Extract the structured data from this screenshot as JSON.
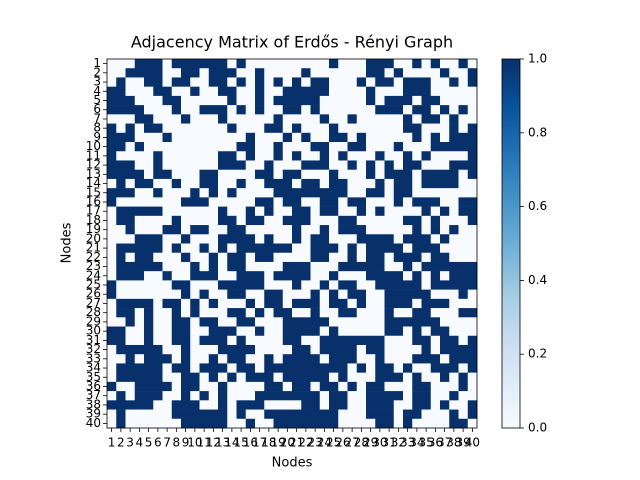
{
  "chart_data": {
    "type": "heatmap",
    "title": "Adjacency Matrix of Erdős - Rényi Graph",
    "x_label": "Nodes",
    "y_label": "Nodes",
    "xticks": [
      1,
      2,
      3,
      4,
      5,
      6,
      7,
      8,
      9,
      10,
      11,
      12,
      13,
      14,
      15,
      16,
      17,
      18,
      19,
      20,
      21,
      22,
      23,
      24,
      25,
      26,
      27,
      28,
      29,
      30,
      31,
      32,
      33,
      34,
      35,
      36,
      37,
      38,
      39,
      40
    ],
    "yticks": [
      1,
      2,
      3,
      4,
      5,
      6,
      7,
      8,
      9,
      10,
      11,
      12,
      13,
      14,
      15,
      16,
      17,
      18,
      19,
      20,
      21,
      22,
      23,
      24,
      25,
      26,
      27,
      28,
      29,
      30,
      31,
      32,
      33,
      34,
      35,
      36,
      37,
      38,
      39,
      40
    ],
    "colormap": [
      "#f7fbff",
      "#deebf7",
      "#c6dbef",
      "#9ecae1",
      "#6baed6",
      "#4292c6",
      "#2171b5",
      "#08519c",
      "#08306b"
    ],
    "clim": [
      0,
      1
    ],
    "colorbar_ticks": [
      {
        "value": 0,
        "label": "0.0"
      },
      {
        "value": 0.2,
        "label": "0.2"
      },
      {
        "value": 0.4,
        "label": "0.4"
      },
      {
        "value": 0.6,
        "label": "0.6"
      },
      {
        "value": 0.8,
        "label": "0.8"
      },
      {
        "value": 1,
        "label": "1.0"
      }
    ],
    "matrix": [
      [
        0,
        0,
        0,
        1,
        1,
        1,
        0,
        1,
        1,
        1,
        1,
        1,
        1,
        0,
        1,
        0,
        0,
        0,
        0,
        0,
        0,
        0,
        0,
        0,
        1,
        0,
        0,
        0,
        1,
        1,
        1,
        0,
        0,
        1,
        0,
        1,
        0,
        0,
        1,
        0
      ],
      [
        0,
        0,
        1,
        1,
        1,
        1,
        0,
        0,
        1,
        1,
        0,
        1,
        1,
        1,
        0,
        0,
        1,
        0,
        0,
        0,
        0,
        1,
        0,
        0,
        0,
        0,
        0,
        0,
        1,
        1,
        0,
        1,
        0,
        0,
        0,
        0,
        1,
        0,
        0,
        1
      ],
      [
        0,
        1,
        0,
        0,
        1,
        1,
        0,
        1,
        1,
        0,
        0,
        1,
        1,
        0,
        1,
        0,
        1,
        0,
        1,
        0,
        1,
        0,
        1,
        1,
        0,
        0,
        0,
        1,
        0,
        1,
        1,
        0,
        1,
        1,
        1,
        0,
        0,
        1,
        0,
        1
      ],
      [
        1,
        1,
        0,
        0,
        0,
        1,
        1,
        0,
        0,
        1,
        0,
        0,
        1,
        1,
        0,
        0,
        1,
        0,
        0,
        1,
        1,
        1,
        1,
        1,
        0,
        0,
        0,
        0,
        1,
        0,
        0,
        0,
        1,
        1,
        1,
        0,
        0,
        0,
        0,
        0
      ],
      [
        1,
        1,
        1,
        0,
        0,
        0,
        1,
        1,
        0,
        0,
        0,
        0,
        0,
        1,
        0,
        0,
        1,
        0,
        1,
        1,
        1,
        1,
        1,
        0,
        0,
        0,
        0,
        0,
        1,
        0,
        1,
        1,
        1,
        0,
        1,
        1,
        0,
        0,
        0,
        0
      ],
      [
        1,
        1,
        1,
        1,
        0,
        0,
        0,
        1,
        0,
        0,
        1,
        1,
        1,
        0,
        1,
        0,
        1,
        0,
        0,
        1,
        1,
        0,
        1,
        0,
        0,
        0,
        0,
        0,
        0,
        1,
        1,
        1,
        0,
        1,
        1,
        0,
        1,
        0,
        1,
        0
      ],
      [
        0,
        0,
        0,
        1,
        1,
        0,
        0,
        0,
        1,
        0,
        0,
        0,
        1,
        0,
        0,
        0,
        0,
        0,
        1,
        0,
        0,
        0,
        0,
        1,
        0,
        0,
        1,
        0,
        0,
        0,
        0,
        0,
        1,
        0,
        1,
        1,
        0,
        1,
        0,
        0
      ],
      [
        1,
        0,
        1,
        0,
        1,
        1,
        0,
        0,
        0,
        0,
        0,
        0,
        0,
        1,
        0,
        0,
        0,
        1,
        1,
        0,
        1,
        0,
        0,
        0,
        1,
        0,
        0,
        0,
        0,
        0,
        0,
        0,
        1,
        1,
        0,
        0,
        0,
        1,
        0,
        1
      ],
      [
        1,
        1,
        1,
        0,
        0,
        0,
        1,
        0,
        0,
        0,
        0,
        0,
        0,
        0,
        0,
        1,
        0,
        0,
        0,
        1,
        0,
        1,
        0,
        0,
        1,
        1,
        0,
        1,
        0,
        0,
        0,
        0,
        0,
        1,
        0,
        1,
        0,
        1,
        1,
        1
      ],
      [
        1,
        1,
        0,
        1,
        0,
        0,
        0,
        0,
        0,
        0,
        0,
        0,
        0,
        0,
        1,
        1,
        0,
        0,
        1,
        0,
        0,
        0,
        1,
        1,
        0,
        0,
        1,
        1,
        0,
        0,
        0,
        1,
        0,
        0,
        0,
        1,
        1,
        1,
        1,
        1
      ],
      [
        1,
        0,
        0,
        0,
        0,
        1,
        0,
        0,
        0,
        0,
        0,
        0,
        1,
        1,
        0,
        1,
        0,
        0,
        1,
        0,
        1,
        0,
        0,
        1,
        0,
        1,
        0,
        0,
        0,
        1,
        0,
        0,
        1,
        0,
        1,
        0,
        0,
        0,
        0,
        1
      ],
      [
        1,
        1,
        1,
        0,
        0,
        1,
        0,
        0,
        0,
        0,
        0,
        0,
        1,
        1,
        1,
        0,
        0,
        1,
        0,
        0,
        0,
        1,
        1,
        1,
        0,
        0,
        1,
        0,
        1,
        0,
        1,
        0,
        1,
        1,
        0,
        0,
        0,
        1,
        1,
        1
      ],
      [
        1,
        1,
        1,
        1,
        0,
        1,
        1,
        0,
        0,
        0,
        1,
        1,
        0,
        0,
        0,
        0,
        1,
        1,
        0,
        1,
        1,
        0,
        0,
        0,
        1,
        0,
        0,
        0,
        1,
        0,
        1,
        1,
        1,
        0,
        1,
        1,
        1,
        1,
        0,
        1
      ],
      [
        0,
        1,
        0,
        1,
        1,
        0,
        0,
        1,
        0,
        0,
        1,
        1,
        0,
        0,
        1,
        0,
        0,
        1,
        1,
        1,
        0,
        1,
        1,
        0,
        1,
        1,
        0,
        0,
        0,
        1,
        0,
        1,
        1,
        0,
        1,
        1,
        1,
        1,
        0,
        0
      ],
      [
        1,
        1,
        1,
        0,
        0,
        1,
        0,
        0,
        0,
        1,
        0,
        1,
        0,
        1,
        0,
        0,
        0,
        0,
        1,
        1,
        1,
        1,
        1,
        1,
        1,
        1,
        0,
        0,
        1,
        1,
        0,
        1,
        1,
        0,
        0,
        0,
        0,
        0,
        0,
        0
      ],
      [
        1,
        0,
        0,
        0,
        0,
        0,
        0,
        0,
        1,
        1,
        1,
        0,
        0,
        0,
        0,
        0,
        1,
        1,
        0,
        1,
        1,
        0,
        0,
        1,
        1,
        0,
        1,
        1,
        0,
        0,
        0,
        1,
        0,
        1,
        1,
        1,
        0,
        0,
        1,
        1
      ],
      [
        0,
        1,
        1,
        1,
        1,
        1,
        0,
        0,
        0,
        0,
        0,
        0,
        1,
        0,
        0,
        1,
        0,
        1,
        0,
        0,
        1,
        1,
        0,
        1,
        1,
        0,
        0,
        1,
        0,
        1,
        0,
        0,
        0,
        0,
        1,
        0,
        1,
        0,
        1,
        1
      ],
      [
        0,
        1,
        1,
        0,
        0,
        0,
        0,
        1,
        0,
        0,
        0,
        0,
        1,
        1,
        0,
        1,
        1,
        0,
        0,
        1,
        1,
        1,
        0,
        0,
        0,
        1,
        1,
        0,
        0,
        0,
        0,
        0,
        1,
        1,
        0,
        1,
        0,
        0,
        0,
        1
      ],
      [
        0,
        0,
        1,
        0,
        0,
        0,
        1,
        1,
        0,
        1,
        1,
        0,
        0,
        1,
        1,
        0,
        0,
        0,
        0,
        0,
        1,
        0,
        0,
        1,
        0,
        1,
        1,
        1,
        0,
        0,
        0,
        0,
        0,
        1,
        0,
        1,
        0,
        1,
        0,
        0
      ],
      [
        0,
        0,
        0,
        1,
        1,
        1,
        0,
        0,
        1,
        0,
        0,
        0,
        1,
        1,
        1,
        1,
        0,
        1,
        0,
        0,
        1,
        0,
        1,
        1,
        0,
        0,
        0,
        1,
        1,
        1,
        1,
        0,
        1,
        1,
        1,
        0,
        1,
        0,
        0,
        0
      ],
      [
        0,
        1,
        1,
        1,
        1,
        1,
        0,
        1,
        0,
        0,
        1,
        0,
        1,
        0,
        1,
        1,
        1,
        1,
        1,
        1,
        0,
        0,
        1,
        1,
        1,
        0,
        1,
        0,
        1,
        1,
        1,
        1,
        0,
        1,
        1,
        1,
        0,
        0,
        0,
        0
      ],
      [
        0,
        1,
        0,
        1,
        1,
        0,
        0,
        0,
        1,
        0,
        0,
        1,
        0,
        1,
        1,
        0,
        1,
        1,
        0,
        0,
        0,
        0,
        1,
        1,
        0,
        0,
        1,
        0,
        1,
        1,
        0,
        1,
        1,
        1,
        0,
        1,
        1,
        0,
        0,
        0
      ],
      [
        0,
        1,
        1,
        1,
        1,
        1,
        0,
        0,
        0,
        1,
        0,
        1,
        0,
        1,
        1,
        0,
        0,
        0,
        0,
        1,
        1,
        1,
        0,
        0,
        0,
        1,
        1,
        1,
        1,
        1,
        0,
        0,
        1,
        0,
        1,
        1,
        1,
        1,
        1,
        1
      ],
      [
        0,
        1,
        1,
        1,
        0,
        0,
        1,
        0,
        0,
        1,
        1,
        1,
        0,
        0,
        1,
        1,
        1,
        0,
        1,
        1,
        1,
        1,
        0,
        0,
        1,
        0,
        0,
        0,
        1,
        1,
        1,
        1,
        0,
        1,
        0,
        1,
        0,
        1,
        1,
        1
      ],
      [
        1,
        0,
        0,
        0,
        0,
        0,
        0,
        1,
        1,
        0,
        0,
        0,
        1,
        1,
        1,
        1,
        1,
        0,
        0,
        0,
        1,
        0,
        0,
        1,
        0,
        1,
        1,
        0,
        0,
        1,
        1,
        1,
        1,
        1,
        0,
        1,
        1,
        1,
        1,
        1
      ],
      [
        1,
        0,
        0,
        0,
        0,
        0,
        0,
        0,
        1,
        0,
        1,
        0,
        0,
        1,
        1,
        0,
        0,
        1,
        1,
        0,
        0,
        0,
        1,
        0,
        1,
        0,
        1,
        1,
        0,
        0,
        1,
        1,
        1,
        1,
        1,
        0,
        0,
        0,
        1,
        0
      ],
      [
        0,
        1,
        1,
        1,
        1,
        0,
        1,
        1,
        0,
        1,
        0,
        1,
        0,
        0,
        0,
        1,
        0,
        1,
        1,
        0,
        1,
        1,
        1,
        0,
        1,
        1,
        0,
        1,
        0,
        0,
        1,
        1,
        1,
        0,
        1,
        1,
        1,
        0,
        0,
        0
      ],
      [
        0,
        1,
        1,
        0,
        1,
        0,
        0,
        1,
        0,
        1,
        0,
        0,
        0,
        1,
        1,
        0,
        1,
        0,
        1,
        1,
        0,
        0,
        1,
        0,
        0,
        1,
        1,
        0,
        0,
        0,
        1,
        0,
        0,
        1,
        1,
        0,
        0,
        0,
        1,
        1
      ],
      [
        0,
        0,
        1,
        0,
        1,
        0,
        0,
        1,
        1,
        0,
        1,
        1,
        0,
        0,
        1,
        1,
        0,
        0,
        0,
        1,
        1,
        1,
        1,
        1,
        0,
        0,
        0,
        0,
        0,
        0,
        1,
        1,
        1,
        1,
        1,
        1,
        0,
        0,
        0,
        0
      ],
      [
        1,
        1,
        0,
        0,
        1,
        0,
        0,
        1,
        1,
        0,
        0,
        1,
        1,
        1,
        0,
        0,
        1,
        0,
        0,
        1,
        1,
        1,
        1,
        0,
        1,
        0,
        0,
        0,
        0,
        0,
        1,
        1,
        0,
        1,
        0,
        1,
        1,
        0,
        0,
        0
      ],
      [
        1,
        1,
        0,
        0,
        1,
        0,
        0,
        1,
        1,
        0,
        1,
        1,
        1,
        0,
        1,
        0,
        0,
        0,
        0,
        1,
        1,
        0,
        0,
        1,
        1,
        1,
        1,
        1,
        1,
        1,
        0,
        0,
        0,
        1,
        1,
        0,
        1,
        1,
        0,
        1
      ],
      [
        0,
        1,
        1,
        1,
        1,
        1,
        0,
        0,
        1,
        0,
        0,
        0,
        1,
        1,
        1,
        1,
        0,
        0,
        0,
        0,
        1,
        1,
        0,
        1,
        1,
        1,
        1,
        0,
        1,
        1,
        0,
        0,
        0,
        0,
        1,
        0,
        1,
        1,
        1,
        1
      ],
      [
        0,
        0,
        1,
        0,
        1,
        1,
        1,
        0,
        1,
        0,
        0,
        1,
        0,
        1,
        1,
        0,
        0,
        1,
        0,
        1,
        1,
        1,
        1,
        0,
        1,
        1,
        1,
        0,
        0,
        1,
        0,
        0,
        0,
        1,
        1,
        1,
        0,
        1,
        1,
        1
      ],
      [
        0,
        1,
        1,
        1,
        1,
        1,
        0,
        1,
        1,
        0,
        1,
        1,
        1,
        0,
        1,
        1,
        0,
        1,
        1,
        1,
        1,
        1,
        1,
        1,
        1,
        1,
        0,
        1,
        0,
        1,
        1,
        0,
        1,
        0,
        0,
        1,
        1,
        1,
        0,
        1
      ],
      [
        0,
        1,
        1,
        1,
        1,
        1,
        0,
        0,
        1,
        1,
        0,
        1,
        0,
        1,
        0,
        1,
        1,
        1,
        0,
        1,
        1,
        1,
        1,
        1,
        0,
        1,
        0,
        0,
        0,
        1,
        1,
        1,
        0,
        1,
        0,
        0,
        1,
        0,
        1,
        0
      ],
      [
        1,
        0,
        0,
        1,
        1,
        1,
        1,
        0,
        1,
        1,
        0,
        0,
        1,
        0,
        0,
        0,
        0,
        1,
        1,
        0,
        1,
        1,
        0,
        1,
        1,
        0,
        1,
        0,
        1,
        1,
        0,
        0,
        0,
        1,
        1,
        0,
        0,
        0,
        1,
        0
      ],
      [
        0,
        1,
        0,
        1,
        1,
        1,
        0,
        0,
        1,
        0,
        1,
        0,
        1,
        0,
        0,
        0,
        1,
        1,
        1,
        1,
        1,
        1,
        1,
        0,
        1,
        1,
        0,
        0,
        1,
        1,
        1,
        1,
        0,
        1,
        1,
        0,
        0,
        1,
        0,
        0
      ],
      [
        1,
        1,
        1,
        1,
        1,
        0,
        0,
        1,
        1,
        1,
        0,
        0,
        1,
        0,
        1,
        1,
        1,
        0,
        0,
        0,
        0,
        1,
        1,
        0,
        1,
        1,
        0,
        0,
        1,
        1,
        1,
        0,
        0,
        1,
        1,
        0,
        1,
        0,
        0,
        1
      ],
      [
        0,
        1,
        0,
        0,
        0,
        0,
        0,
        1,
        1,
        1,
        1,
        1,
        1,
        0,
        1,
        0,
        0,
        1,
        1,
        1,
        1,
        1,
        1,
        1,
        1,
        0,
        0,
        0,
        1,
        1,
        1,
        0,
        1,
        1,
        0,
        0,
        0,
        1,
        0,
        1
      ],
      [
        0,
        1,
        0,
        0,
        0,
        0,
        0,
        0,
        1,
        1,
        1,
        1,
        1,
        0,
        0,
        1,
        0,
        0,
        1,
        1,
        1,
        1,
        1,
        1,
        1,
        0,
        0,
        0,
        0,
        1,
        1,
        0,
        1,
        0,
        0,
        0,
        0,
        1,
        1,
        0
      ]
    ]
  }
}
